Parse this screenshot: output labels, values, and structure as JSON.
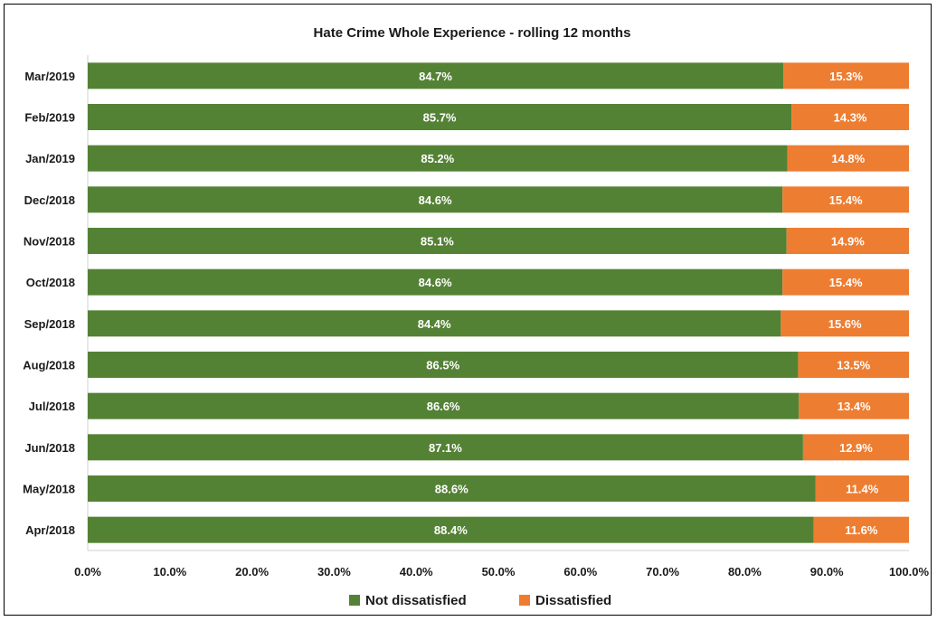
{
  "chart_data": {
    "type": "bar",
    "orientation": "horizontal",
    "stacked": "percent",
    "title": "Hate Crime Whole Experience - rolling 12 months",
    "xlabel": "",
    "ylabel": "",
    "xlim": [
      0,
      100
    ],
    "x_ticks": [
      "0.0%",
      "10.0%",
      "20.0%",
      "30.0%",
      "40.0%",
      "50.0%",
      "60.0%",
      "70.0%",
      "80.0%",
      "90.0%",
      "100.0%"
    ],
    "categories": [
      "Mar/2019",
      "Feb/2019",
      "Jan/2019",
      "Dec/2018",
      "Nov/2018",
      "Oct/2018",
      "Sep/2018",
      "Aug/2018",
      "Jul/2018",
      "Jun/2018",
      "May/2018",
      "Apr/2018"
    ],
    "series": [
      {
        "name": "Not dissatisfied",
        "color": "#548235",
        "values": [
          84.7,
          85.7,
          85.2,
          84.6,
          85.1,
          84.6,
          84.4,
          86.5,
          86.6,
          87.1,
          88.6,
          88.4
        ],
        "labels": [
          "84.7%",
          "85.7%",
          "85.2%",
          "84.6%",
          "85.1%",
          "84.6%",
          "84.4%",
          "86.5%",
          "86.6%",
          "87.1%",
          "88.6%",
          "88.4%"
        ]
      },
      {
        "name": "Dissatisfied",
        "color": "#ED7D31",
        "values": [
          15.3,
          14.3,
          14.8,
          15.4,
          14.9,
          15.4,
          15.6,
          13.5,
          13.4,
          12.9,
          11.4,
          11.6
        ],
        "labels": [
          "15.3%",
          "14.3%",
          "14.8%",
          "15.4%",
          "14.9%",
          "15.4%",
          "15.6%",
          "13.5%",
          "13.4%",
          "12.9%",
          "11.4%",
          "11.6%"
        ]
      }
    ],
    "grid": false,
    "legend_position": "bottom"
  }
}
